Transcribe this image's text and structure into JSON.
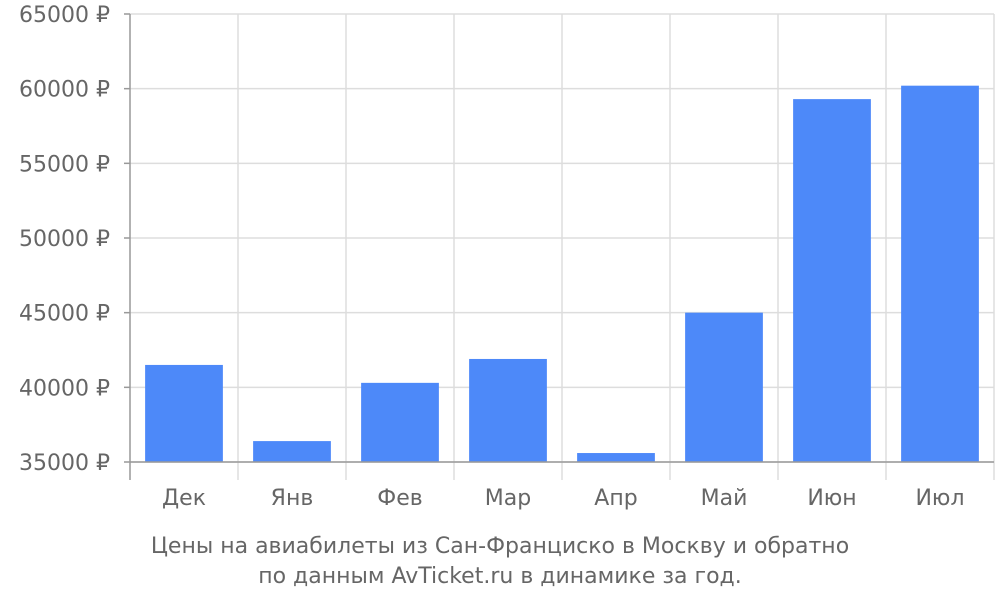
{
  "chart_data": {
    "type": "bar",
    "categories": [
      "Дек",
      "Янв",
      "Фев",
      "Мар",
      "Апр",
      "Май",
      "Июн",
      "Июл"
    ],
    "values": [
      41500,
      36400,
      40300,
      41900,
      35600,
      45000,
      59300,
      60200
    ],
    "ylim": [
      35000,
      65000
    ],
    "yticks": [
      35000,
      40000,
      45000,
      50000,
      55000,
      60000,
      65000
    ],
    "ytick_labels": [
      "35000 ₽",
      "40000 ₽",
      "45000 ₽",
      "50000 ₽",
      "55000 ₽",
      "60000 ₽",
      "65000 ₽"
    ],
    "grid": true,
    "bar_color": "#4d89f9",
    "grid_color": "#dddddd",
    "text_color": "#666666"
  },
  "caption": {
    "line1": "Цены на авиабилеты из Сан-Франциско в Москву и обратно",
    "line2": "по данным AvTicket.ru в динамике за год."
  }
}
